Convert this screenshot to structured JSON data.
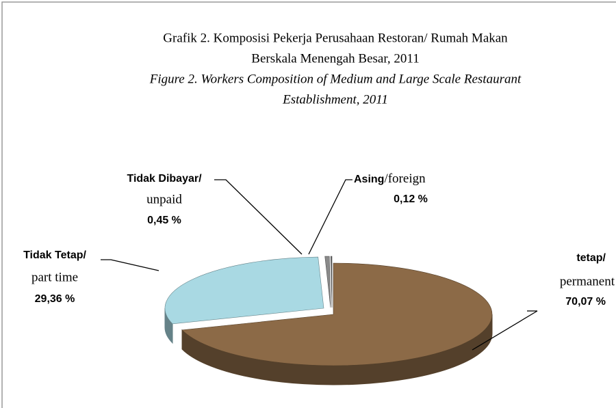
{
  "chart_data": {
    "type": "pie",
    "title": [
      "Grafik 2.  Komposisi Pekerja Perusahaan Restoran/ Rumah Makan",
      "Berskala Menengah Besar, 2011"
    ],
    "subtitle": [
      "Figure 2. Workers Composition of Medium and Large Scale Restaurant",
      "Establishment, 2011"
    ],
    "categories": [
      [
        "tetap/",
        "permanent"
      ],
      [
        "Tidak Tetap/",
        "part time"
      ],
      [
        "Tidak Dibayar/",
        "unpaid"
      ],
      [
        "Asing",
        "/foreign"
      ]
    ],
    "values": [
      70.07,
      29.36,
      0.45,
      0.12
    ],
    "value_labels": [
      "70,07 %",
      "29,36 %",
      "0,45 %",
      "0,12 %"
    ],
    "colors": [
      "#8c6a47",
      "#a9d9e3",
      "#8a8a8a",
      "#6f6f6f"
    ]
  }
}
